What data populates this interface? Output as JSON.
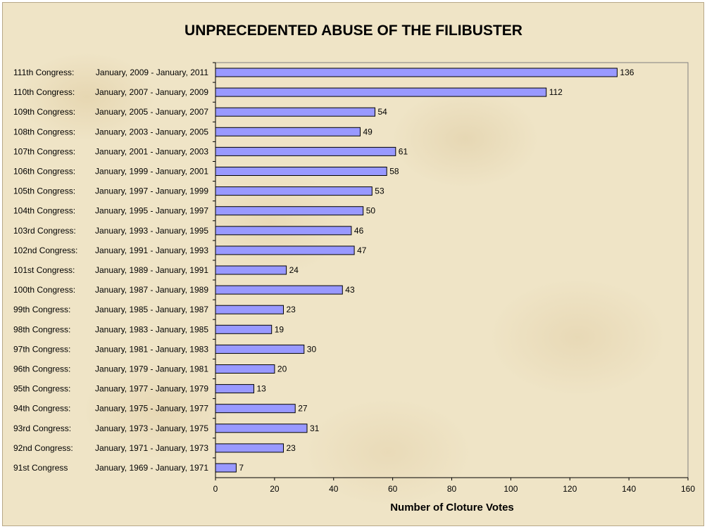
{
  "colors": {
    "bar_fill": "#9999ff",
    "bar_stroke": "#000000",
    "axis": "#808080"
  },
  "chart_data": {
    "type": "bar",
    "orientation": "horizontal",
    "title": "UNPRECEDENTED ABUSE OF THE FILIBUSTER",
    "xlabel": "Number of Cloture Votes",
    "ylabel": "",
    "xlim": [
      0,
      160
    ],
    "xticks": [
      0,
      20,
      40,
      60,
      80,
      100,
      120,
      140,
      160
    ],
    "grid": false,
    "legend": "none",
    "categories": [
      {
        "congress": "111th Congress:",
        "dates": "January, 2009 - January, 2011"
      },
      {
        "congress": "110th Congress:",
        "dates": "January, 2007 - January, 2009"
      },
      {
        "congress": "109th Congress:",
        "dates": "January, 2005 - January, 2007"
      },
      {
        "congress": "108th Congress:",
        "dates": "January, 2003 - January, 2005"
      },
      {
        "congress": "107th Congress:",
        "dates": "January, 2001 - January, 2003"
      },
      {
        "congress": "106th Congress:",
        "dates": "January, 1999 - January, 2001"
      },
      {
        "congress": "105th Congress:",
        "dates": "January, 1997 - January, 1999"
      },
      {
        "congress": "104th Congress:",
        "dates": "January, 1995 - January, 1997"
      },
      {
        "congress": "103rd Congress:",
        "dates": "January, 1993 - January, 1995"
      },
      {
        "congress": "102nd Congress:",
        "dates": "January, 1991 - January, 1993"
      },
      {
        "congress": "101st Congress:",
        "dates": "January, 1989 - January, 1991"
      },
      {
        "congress": "100th Congress:",
        "dates": "January, 1987 - January, 1989"
      },
      {
        "congress": "99th Congress:",
        "dates": "January, 1985 - January, 1987"
      },
      {
        "congress": "98th Congress:",
        "dates": "January, 1983 - January, 1985"
      },
      {
        "congress": "97th Congress:",
        "dates": "January, 1981 - January, 1983"
      },
      {
        "congress": "96th Congress:",
        "dates": "January, 1979 - January, 1981"
      },
      {
        "congress": "95th Congress:",
        "dates": "January, 1977 - January, 1979"
      },
      {
        "congress": "94th Congress:",
        "dates": "January, 1975 - January, 1977"
      },
      {
        "congress": "93rd Congress:",
        "dates": "January, 1973 - January, 1975"
      },
      {
        "congress": "92nd Congress:",
        "dates": "January, 1971 - January, 1973"
      },
      {
        "congress": "91st Congress",
        "dates": "January, 1969 - January, 1971"
      }
    ],
    "values": [
      136,
      112,
      54,
      49,
      61,
      58,
      53,
      50,
      46,
      47,
      24,
      43,
      23,
      19,
      30,
      20,
      13,
      27,
      31,
      23,
      7
    ]
  }
}
